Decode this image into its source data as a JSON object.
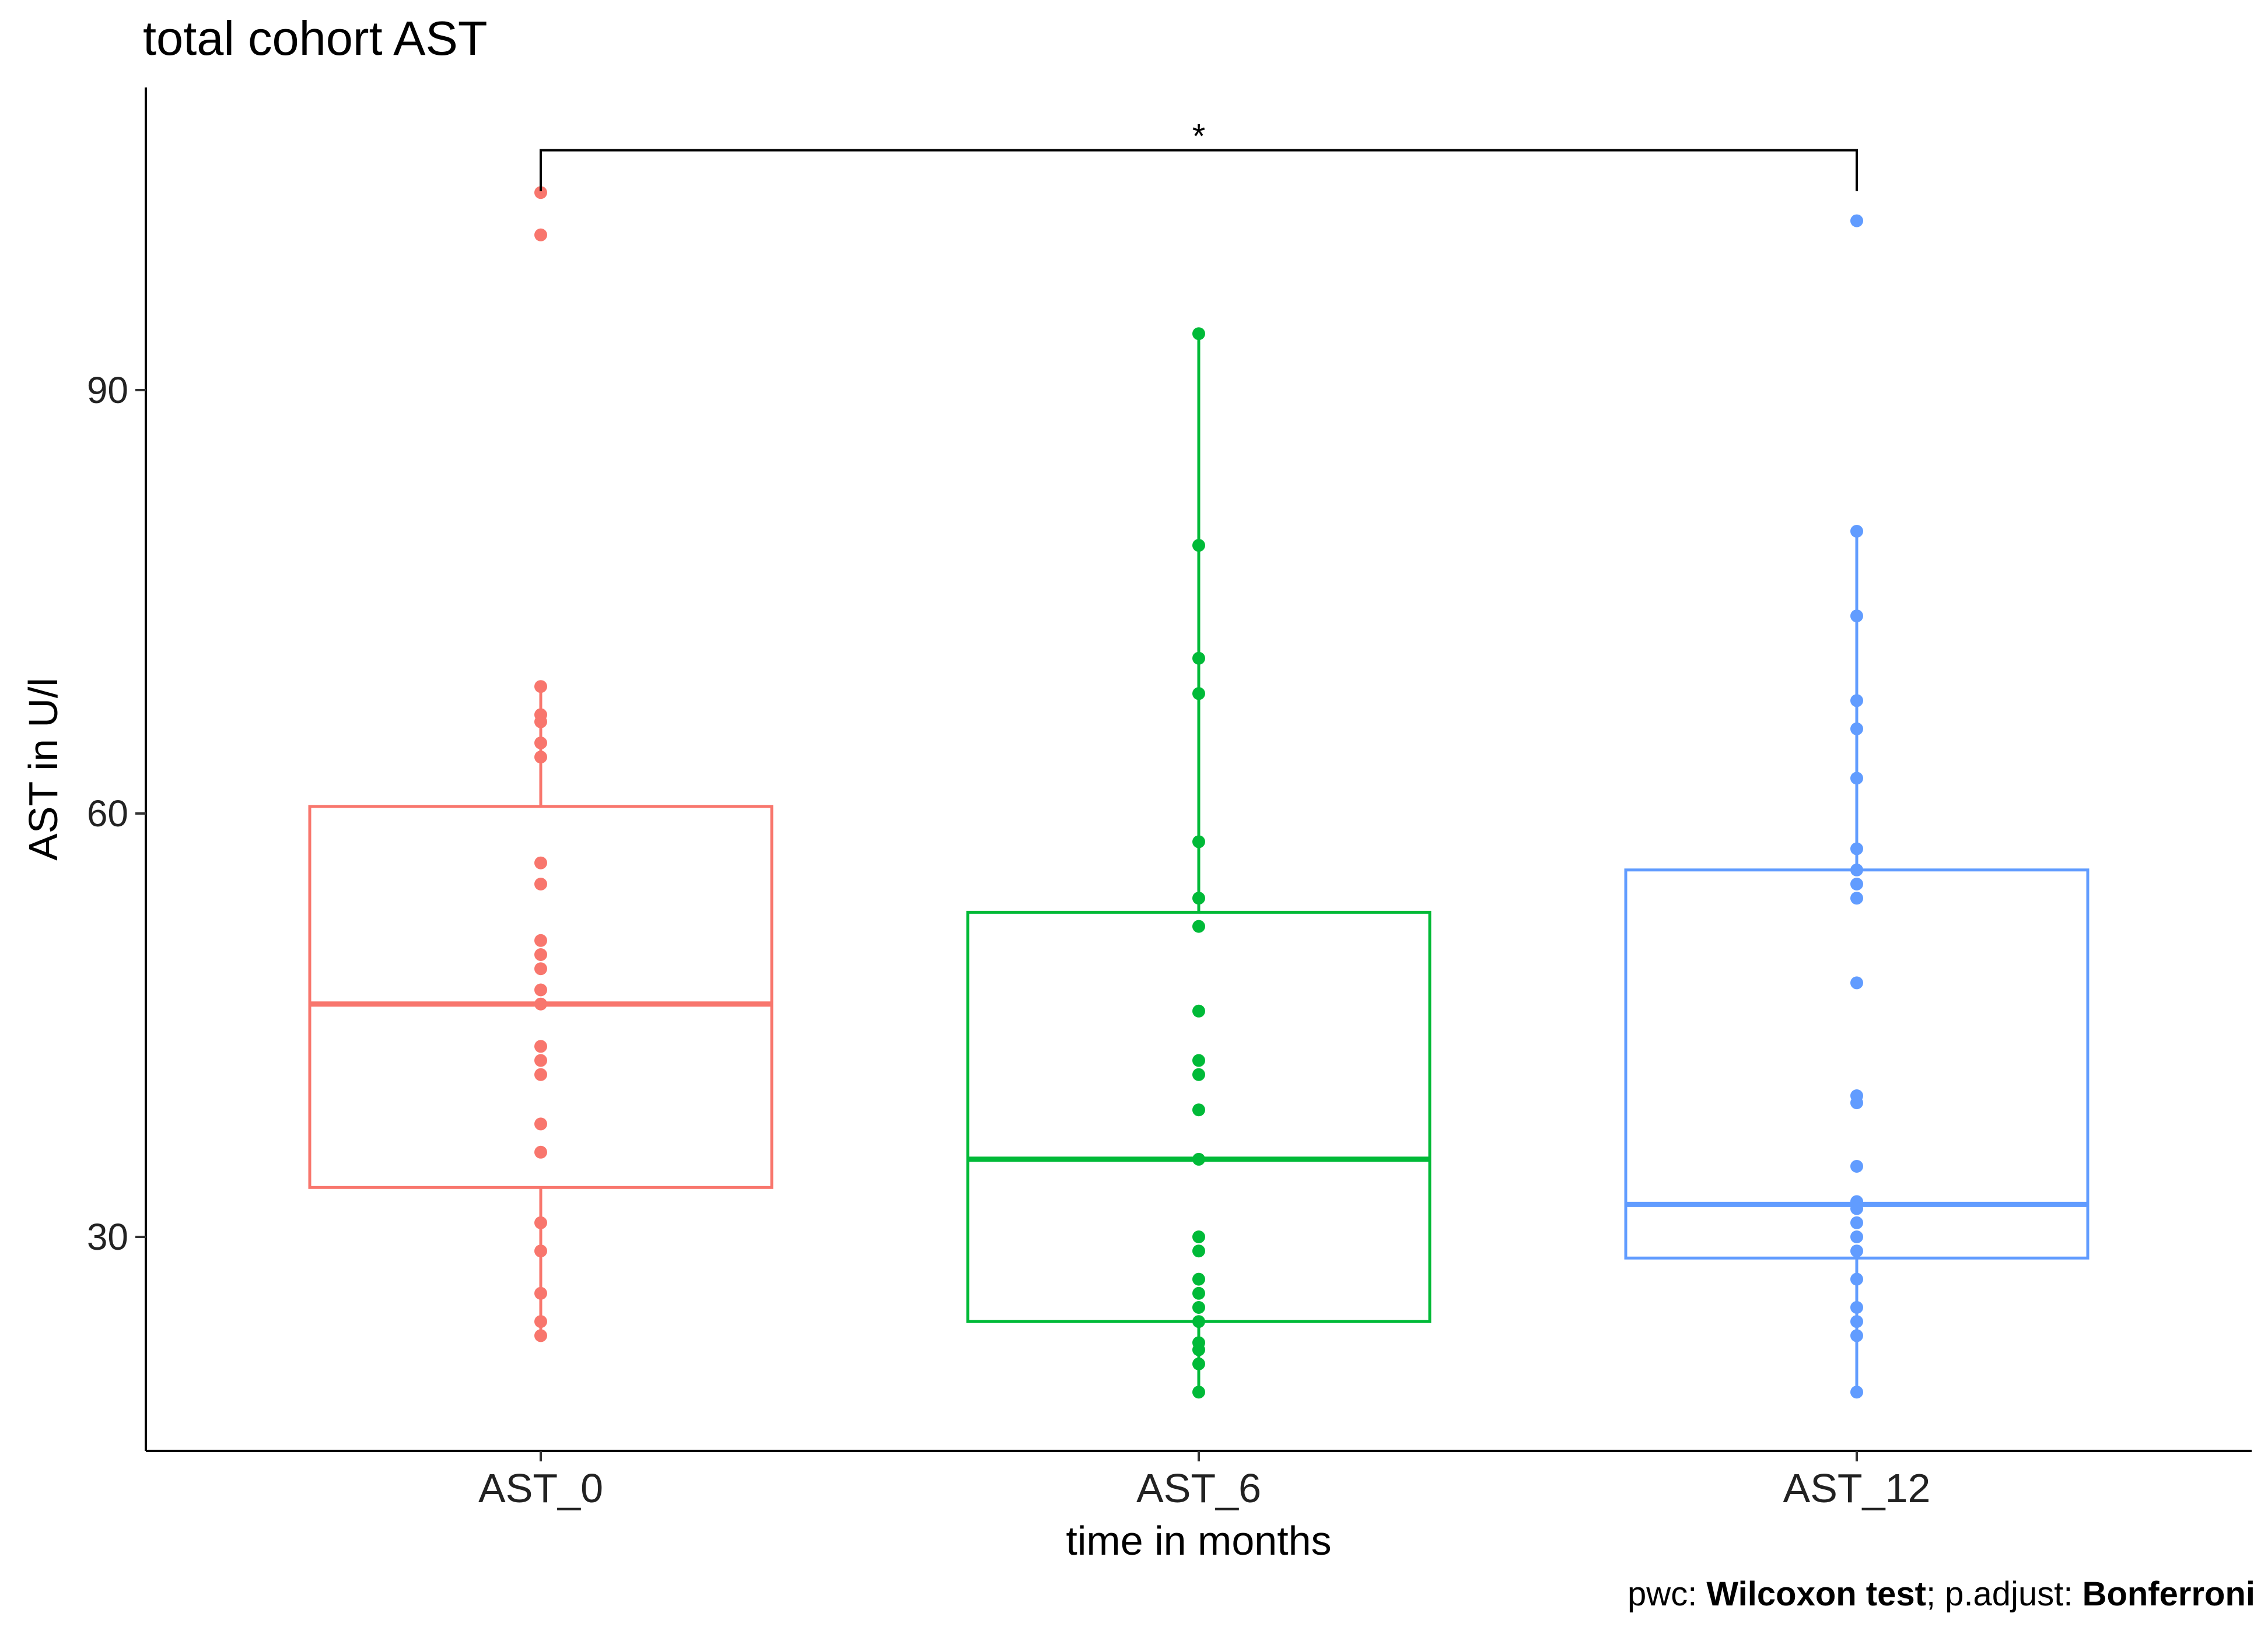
{
  "chart_data": {
    "type": "box",
    "title": "total cohort AST",
    "xlabel": "time in months",
    "ylabel": "AST in U/l",
    "categories": [
      "AST_0",
      "AST_6",
      "AST_12"
    ],
    "colors": {
      "AST_0": "#F8766D",
      "AST_6": "#00BA38",
      "AST_12": "#619CFF"
    },
    "yticks": [
      30,
      60,
      90
    ],
    "ylim": [
      15,
      111
    ],
    "boxes": [
      {
        "name": "AST_0",
        "q1": 33.5,
        "median": 46.5,
        "q3": 60.5,
        "whisker_low": 23,
        "whisker_high": 69,
        "points": [
          104,
          101,
          69,
          67,
          66.5,
          65,
          64,
          56.5,
          55,
          51,
          50,
          49,
          47.5,
          46.5,
          43.5,
          42.5,
          41.5,
          38,
          36,
          31,
          29,
          26,
          24,
          23
        ]
      },
      {
        "name": "AST_6",
        "q1": 24,
        "median": 35.5,
        "q3": 53,
        "whisker_low": 19,
        "whisker_high": 94,
        "points": [
          94,
          79,
          71,
          68.5,
          58,
          54,
          52,
          46,
          42.5,
          41.5,
          39,
          35.5,
          30,
          29,
          27,
          26,
          25,
          24,
          22.5,
          22,
          21,
          19
        ]
      },
      {
        "name": "AST_12",
        "q1": 28.5,
        "median": 32.3,
        "q3": 56,
        "whisker_low": 19,
        "whisker_high": 80,
        "points": [
          102,
          80,
          74,
          68,
          66,
          62.5,
          57.5,
          56,
          55,
          54,
          48,
          40,
          39.5,
          35,
          32.5,
          32,
          31,
          30,
          29,
          27,
          25,
          24,
          23,
          19
        ]
      }
    ],
    "comparison": {
      "from": "AST_0",
      "to": "AST_12",
      "label": "*",
      "y": 107
    }
  },
  "caption": {
    "pwc_prefix": "pwc: ",
    "pwc_method": "Wilcoxon test",
    "adjust_prefix": "; p.adjust: ",
    "adjust_method": "Bonferroni"
  }
}
